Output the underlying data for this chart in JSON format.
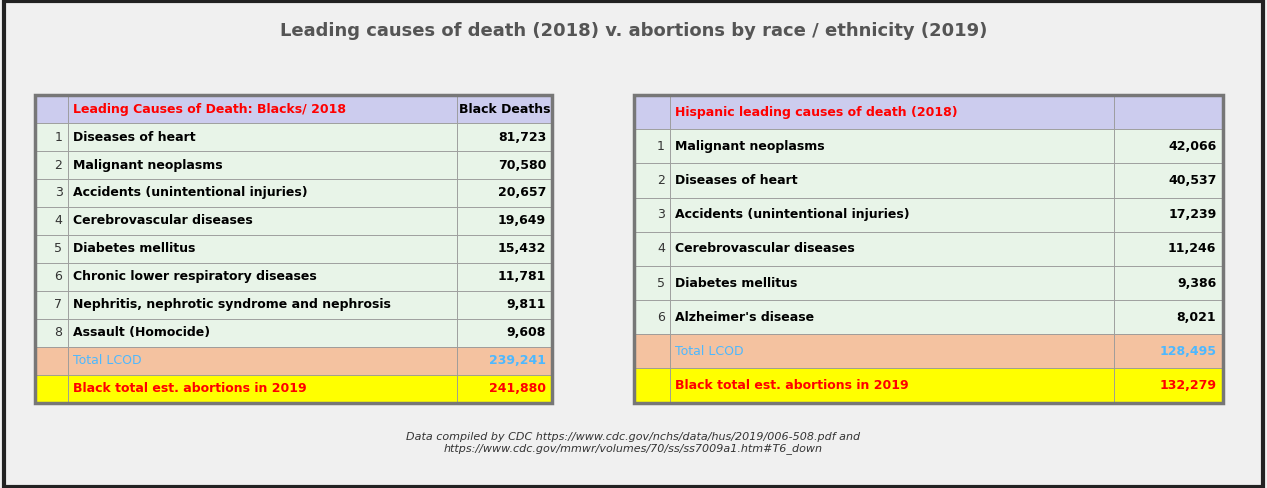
{
  "title": "Leading causes of death (2018) v. abortions by race / ethnicity (2019)",
  "title_fontsize": 13,
  "title_color": "#555555",
  "footnote": "Data compiled by CDC https://www.cdc.gov/nchs/data/hus/2019/006-508.pdf and\nhttps://www.cdc.gov/mmwr/volumes/70/ss/ss7009a1.htm#T6_down",
  "footnote_fontsize": 8,
  "black_table": {
    "header_col1": "Leading Causes of Death: Blacks/ 2018",
    "header_col2": "Black Deaths",
    "header_col1_color": "#FF0000",
    "header_col2_color": "#000000",
    "header_bg": "#ccccee",
    "rows": [
      {
        "num": "1",
        "cause": "Diseases of heart",
        "value": "81,723"
      },
      {
        "num": "2",
        "cause": "Malignant neoplasms",
        "value": "70,580"
      },
      {
        "num": "3",
        "cause": "Accidents (unintentional injuries)",
        "value": "20,657"
      },
      {
        "num": "4",
        "cause": "Cerebrovascular diseases",
        "value": "19,649"
      },
      {
        "num": "5",
        "cause": "Diabetes mellitus",
        "value": "15,432"
      },
      {
        "num": "6",
        "cause": "Chronic lower respiratory diseases",
        "value": "11,781"
      },
      {
        "num": "7",
        "cause": "Nephritis, nephrotic syndrome and nephrosis",
        "value": "9,811"
      },
      {
        "num": "8",
        "cause": "Assault (Homocide)",
        "value": "9,608"
      }
    ],
    "row_bg": "#e8f4e8",
    "total_row": {
      "cause": "Total LCOD",
      "value": "239,241",
      "bg": "#f4c2a0",
      "text_color": "#4db8ff"
    },
    "abortion_row": {
      "cause": "Black total est. abortions in 2019",
      "value": "241,880",
      "bg": "#ffff00",
      "text_color": "#FF0000"
    }
  },
  "hispanic_table": {
    "header_col1": "Hispanic leading causes of death (2018)",
    "header_col2": "",
    "header_col1_color": "#FF0000",
    "header_col2_color": "#000000",
    "header_bg": "#ccccee",
    "rows": [
      {
        "num": "1",
        "cause": "Malignant neoplasms",
        "value": "42,066"
      },
      {
        "num": "2",
        "cause": "Diseases of heart",
        "value": "40,537"
      },
      {
        "num": "3",
        "cause": "Accidents (unintentional injuries)",
        "value": "17,239"
      },
      {
        "num": "4",
        "cause": "Cerebrovascular diseases",
        "value": "11,246"
      },
      {
        "num": "5",
        "cause": "Diabetes mellitus",
        "value": "9,386"
      },
      {
        "num": "6",
        "cause": "Alzheimer's disease",
        "value": "8,021"
      }
    ],
    "row_bg": "#e8f4e8",
    "total_row": {
      "cause": "Total LCOD",
      "value": "128,495",
      "bg": "#f4c2a0",
      "text_color": "#4db8ff"
    },
    "abortion_row": {
      "cause": "Black total est. abortions in 2019",
      "value": "132,279",
      "bg": "#ffff00",
      "text_color": "#FF0000"
    }
  },
  "bg_color": "#f0f0f0",
  "outer_border_color": "#222222"
}
